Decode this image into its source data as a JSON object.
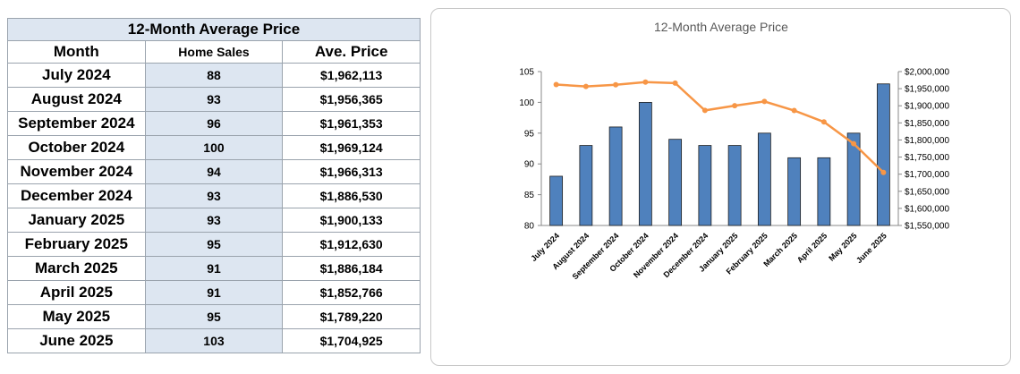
{
  "table": {
    "title": "12-Month Average Price",
    "headers": [
      "Month",
      "Home Sales",
      "Ave. Price"
    ],
    "rows": [
      {
        "month": "July 2024",
        "sales": "88",
        "price": "$1,962,113"
      },
      {
        "month": "August 2024",
        "sales": "93",
        "price": "$1,956,365"
      },
      {
        "month": "September 2024",
        "sales": "96",
        "price": "$1,961,353"
      },
      {
        "month": "October 2024",
        "sales": "100",
        "price": "$1,969,124"
      },
      {
        "month": "November 2024",
        "sales": "94",
        "price": "$1,966,313"
      },
      {
        "month": "December 2024",
        "sales": "93",
        "price": "$1,886,530"
      },
      {
        "month": "January 2025",
        "sales": "93",
        "price": "$1,900,133"
      },
      {
        "month": "February 2025",
        "sales": "95",
        "price": "$1,912,630"
      },
      {
        "month": "March 2025",
        "sales": "91",
        "price": "$1,886,184"
      },
      {
        "month": "April 2025",
        "sales": "91",
        "price": "$1,852,766"
      },
      {
        "month": "May 2025",
        "sales": "95",
        "price": "$1,789,220"
      },
      {
        "month": "June 2025",
        "sales": "103",
        "price": "$1,704,925"
      }
    ]
  },
  "chart_data": {
    "type": "bar",
    "title": "12-Month Average Price",
    "categories": [
      "July 2024",
      "August 2024",
      "September 2024",
      "October 2024",
      "November 2024",
      "December 2024",
      "January 2025",
      "February 2025",
      "March 2025",
      "April 2025",
      "May 2025",
      "June 2025"
    ],
    "series": [
      {
        "type": "bar",
        "axis": "left",
        "color": "#4f81bd",
        "values": [
          88,
          93,
          96,
          100,
          94,
          93,
          93,
          95,
          91,
          91,
          95,
          103
        ]
      },
      {
        "type": "line",
        "axis": "right",
        "color": "#f79646",
        "values": [
          1962113,
          1956365,
          1961353,
          1969124,
          1966313,
          1886530,
          1900133,
          1912630,
          1886184,
          1852766,
          1789220,
          1704925
        ]
      }
    ],
    "ylim_left": [
      80,
      105
    ],
    "yticks_left": [
      "80",
      "85",
      "90",
      "95",
      "100",
      "105"
    ],
    "ylim_right": [
      1550000,
      2000000
    ],
    "yticks_right": [
      "$1,550,000",
      "$1,600,000",
      "$1,650,000",
      "$1,700,000",
      "$1,750,000",
      "$1,800,000",
      "$1,850,000",
      "$1,900,000",
      "$1,950,000",
      "$2,000,000"
    ],
    "grid": false,
    "legend": "none"
  }
}
